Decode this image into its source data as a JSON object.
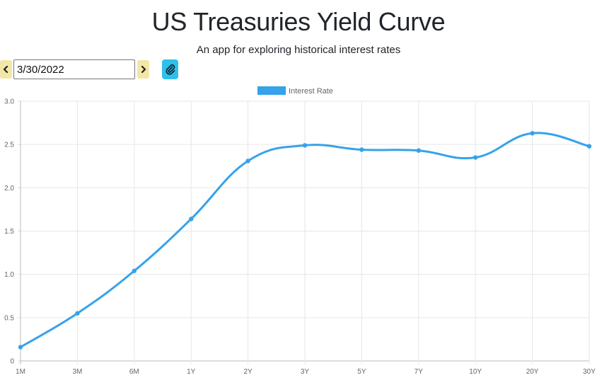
{
  "header": {
    "title": "US Treasuries Yield Curve",
    "subtitle": "An app for exploring historical interest rates"
  },
  "controls": {
    "date_value": "3/30/2022",
    "prev_icon": "chevron-left-icon",
    "next_icon": "chevron-right-icon",
    "share_icon": "paperclip-icon",
    "accent_color": "#2ec0ea",
    "nav_color": "#f3e7a6"
  },
  "chart_data": {
    "type": "line",
    "categories": [
      "1M",
      "3M",
      "6M",
      "1Y",
      "2Y",
      "3Y",
      "5Y",
      "7Y",
      "10Y",
      "20Y",
      "30Y"
    ],
    "series": [
      {
        "name": "Interest Rate",
        "values": [
          0.16,
          0.55,
          1.04,
          1.64,
          2.31,
          2.49,
          2.44,
          2.43,
          2.35,
          2.63,
          2.48
        ],
        "color": "#36a2eb"
      }
    ],
    "yticks": [
      "0",
      "0.5",
      "1.0",
      "1.5",
      "2.0",
      "2.5",
      "3.0"
    ],
    "ylim": [
      0,
      3
    ],
    "grid": true,
    "legend": "top-center"
  }
}
